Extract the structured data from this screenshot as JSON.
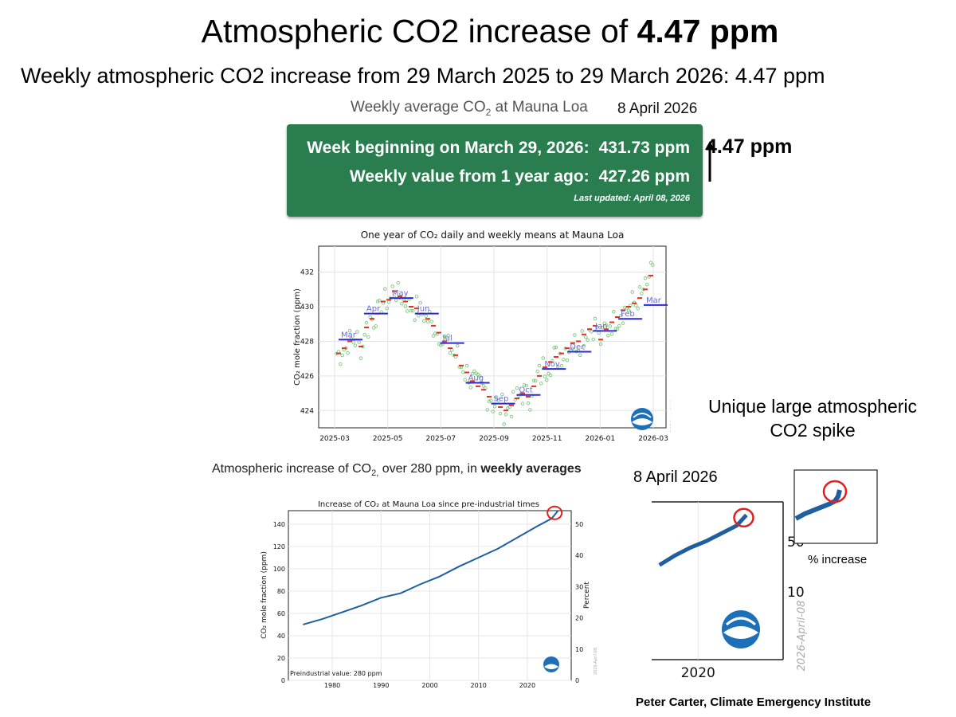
{
  "header": {
    "title_prefix": "Atmospheric CO2 increase of ",
    "title_value": "4.47 ppm",
    "subtitle": "Weekly atmospheric CO2 increase from 29 March 2025 to 29 March 2026: 4.47 ppm"
  },
  "card": {
    "heading": "Weekly average CO",
    "heading_sub": "2",
    "heading_tail": " at Mauna Loa",
    "date": "8 April 2026",
    "line1_label": "Week beginning on March 29, 2026:",
    "line1_value": "431.73 ppm",
    "line2_label": "Weekly value from 1 year ago:",
    "line2_value": "427.26 ppm",
    "updated": "Last updated: April 08, 2026",
    "increase_label": "4.47 ppm",
    "accent": "#2a7d4f"
  },
  "annotations": {
    "spike_note": "Unique large atmospheric CO2 spike",
    "chart3_heading_pre": "Atmospheric increase of CO",
    "chart3_heading_sub": "2,",
    "chart3_heading_mid": " over 280 ppm, in ",
    "chart3_heading_bold": "weekly averages",
    "zoom_date": "8 April 2026",
    "percent_increase_label": "% increase",
    "credit": "Peter Carter, Climate Emergency Institute"
  },
  "colors": {
    "daily": "#7cc77c",
    "weekly": "#e0301e",
    "monthly": "#2a2ad0",
    "line": "#1f5fa0",
    "highlight": "#e02020"
  },
  "chart_data": [
    {
      "type": "scatter",
      "title": "One year of CO₂ daily and weekly means at Mauna Loa",
      "ylabel": "CO₂ mole fraction (ppm)",
      "xlabel": "",
      "x_ticks": [
        "2025-03",
        "2025-05",
        "2025-07",
        "2025-09",
        "2025-11",
        "2026-01",
        "2026-03"
      ],
      "y_ticks": [
        424,
        426,
        428,
        430,
        432
      ],
      "ylim": [
        423,
        433.5
      ],
      "grid": true,
      "watermark": "2026-April-08",
      "monthly": [
        {
          "label": "Mar",
          "value": 428.1
        },
        {
          "label": "Apr",
          "value": 429.6
        },
        {
          "label": "May",
          "value": 430.5
        },
        {
          "label": "Jun",
          "value": 429.6
        },
        {
          "label": "Jul",
          "value": 427.9
        },
        {
          "label": "Aug",
          "value": 425.6
        },
        {
          "label": "Sep",
          "value": 424.4
        },
        {
          "label": "Oct",
          "value": 424.9
        },
        {
          "label": "Nov",
          "value": 426.4
        },
        {
          "label": "Dec",
          "value": 427.4
        },
        {
          "label": "Jan",
          "value": 428.6
        },
        {
          "label": "Feb",
          "value": 429.3
        },
        {
          "label": "Mar",
          "value": 430.1
        }
      ],
      "weekly": [
        427.3,
        427.6,
        428.0,
        428.1,
        427.7,
        428.8,
        429.3,
        429.6,
        430.3,
        430.4,
        430.9,
        430.6,
        430.3,
        430.0,
        429.9,
        429.6,
        429.3,
        428.9,
        428.5,
        428.0,
        427.6,
        427.2,
        426.6,
        426.2,
        425.7,
        425.4,
        425.2,
        424.8,
        424.4,
        424.2,
        424.0,
        424.3,
        424.7,
        425.0,
        424.8,
        425.4,
        426.0,
        426.5,
        426.8,
        427.1,
        427.3,
        427.6,
        427.9,
        428.0,
        428.4,
        428.7,
        428.9,
        428.1,
        428.7,
        429.1,
        429.4,
        429.8,
        430.0,
        430.2,
        430.5,
        431.0,
        431.8
      ]
    },
    {
      "type": "line",
      "title": "Increase of CO₂ at Mauna Loa since pre-industrial times",
      "ylabel": "CO₂ mole fraction (ppm)",
      "ylabel_right": "Percent",
      "x_ticks": [
        1980,
        1990,
        2000,
        2010,
        2020
      ],
      "y_ticks": [
        0,
        20,
        40,
        60,
        80,
        100,
        120,
        140
      ],
      "y_ticks_right": [
        0,
        10,
        20,
        30,
        40,
        50
      ],
      "ylim": [
        0,
        152
      ],
      "annotation": "Preindustrial value: 280 ppm",
      "watermark": "2026-April-08",
      "x": [
        1974,
        1978,
        1982,
        1986,
        1990,
        1994,
        1998,
        2002,
        2006,
        2010,
        2014,
        2018,
        2022,
        2025,
        2026.25
      ],
      "y": [
        50,
        55,
        61,
        67,
        74,
        78,
        86,
        93,
        102,
        110,
        118,
        128,
        138,
        145,
        151.7
      ]
    },
    {
      "type": "line",
      "title": "",
      "x_ticks": [
        2020
      ],
      "y_ticks_right": [
        10,
        50
      ],
      "watermark": "2026-April-08",
      "x": [
        2015,
        2017,
        2019,
        2021,
        2023,
        2025,
        2026.25
      ],
      "y": [
        120,
        126,
        131,
        135,
        140,
        145,
        151.7
      ]
    }
  ]
}
